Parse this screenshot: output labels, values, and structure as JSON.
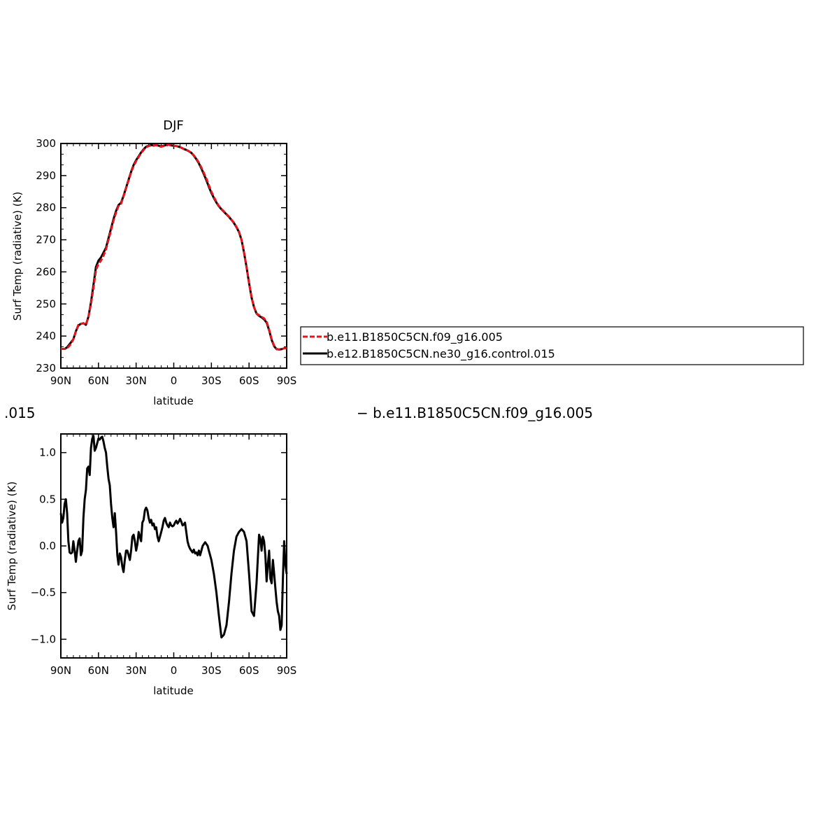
{
  "chart_data": [
    {
      "type": "line",
      "title": "DJF",
      "xlabel": "latitude",
      "ylabel": "Surf Temp (radiative) (K)",
      "xlim": [
        90,
        -90
      ],
      "ylim": [
        230,
        300
      ],
      "x_ticks": [
        90,
        60,
        30,
        0,
        -30,
        -60,
        -90
      ],
      "x_tick_labels": [
        "90N",
        "60N",
        "30N",
        "0",
        "30S",
        "60S",
        "90S"
      ],
      "y_ticks": [
        230,
        240,
        250,
        260,
        270,
        280,
        290,
        300
      ],
      "y_tick_labels": [
        "230",
        "240",
        "250",
        "260",
        "270",
        "280",
        "290",
        "300"
      ],
      "grid": false,
      "legend_position": "right, outside plot",
      "series": [
        {
          "name": "b.e11.B1850C5CN.f09_g16.005",
          "color": "#e8141c",
          "dash": "dashed",
          "x": [
            90,
            87,
            85,
            82,
            80,
            78,
            76,
            74,
            72,
            70,
            68,
            66,
            64,
            62,
            60,
            58,
            56,
            54,
            52,
            50,
            48,
            46,
            44,
            42,
            40,
            38,
            36,
            34,
            32,
            30,
            28,
            26,
            24,
            22,
            20,
            18,
            16,
            14,
            12,
            10,
            8,
            6,
            4,
            2,
            0,
            -2,
            -4,
            -6,
            -8,
            -10,
            -12,
            -14,
            -16,
            -18,
            -20,
            -22,
            -24,
            -26,
            -28,
            -30,
            -32,
            -34,
            -36,
            -38,
            -40,
            -42,
            -44,
            -46,
            -48,
            -50,
            -52,
            -54,
            -56,
            -58,
            -60,
            -62,
            -64,
            -66,
            -68,
            -70,
            -72,
            -74,
            -76,
            -78,
            -80,
            -82,
            -84,
            -86,
            -88,
            -90
          ],
          "values": [
            236.0,
            236.0,
            236.2,
            237.5,
            239.0,
            241.5,
            243.5,
            243.8,
            244.0,
            243.5,
            246.0,
            250.0,
            255.0,
            260.5,
            262.5,
            263.5,
            265.0,
            267.0,
            270.0,
            273.0,
            276.0,
            278.5,
            280.5,
            281.2,
            283.5,
            286.0,
            288.5,
            291.0,
            293.0,
            294.5,
            295.8,
            297.0,
            298.0,
            298.8,
            299.2,
            299.4,
            299.3,
            299.5,
            299.2,
            299.0,
            299.2,
            299.5,
            299.6,
            299.4,
            299.3,
            299.2,
            299.0,
            298.7,
            298.3,
            298.0,
            297.6,
            297.1,
            296.3,
            295.3,
            294.0,
            292.5,
            290.8,
            289.0,
            287.0,
            285.0,
            283.3,
            281.8,
            280.5,
            279.6,
            278.8,
            278.0,
            277.2,
            276.3,
            275.3,
            274.0,
            272.5,
            270.0,
            266.0,
            261.5,
            256.5,
            252.0,
            249.0,
            247.0,
            246.5,
            246.0,
            245.5,
            244.5,
            242.0,
            239.0,
            237.0,
            236.0,
            235.8,
            235.9,
            236.2,
            236.3
          ]
        },
        {
          "name": "b.e12.B1850C5CN.ne30_g16.control.015",
          "color": "#000000",
          "dash": "solid",
          "x": [
            90,
            87,
            85,
            82,
            80,
            78,
            76,
            74,
            72,
            70,
            68,
            66,
            64,
            62,
            60,
            58,
            56,
            54,
            52,
            50,
            48,
            46,
            44,
            42,
            40,
            38,
            36,
            34,
            32,
            30,
            28,
            26,
            24,
            22,
            20,
            18,
            16,
            14,
            12,
            10,
            8,
            6,
            4,
            2,
            0,
            -2,
            -4,
            -6,
            -8,
            -10,
            -12,
            -14,
            -16,
            -18,
            -20,
            -22,
            -24,
            -26,
            -28,
            -30,
            -32,
            -34,
            -36,
            -38,
            -40,
            -42,
            -44,
            -46,
            -48,
            -50,
            -52,
            -54,
            -56,
            -58,
            -60,
            -62,
            -64,
            -66,
            -68,
            -70,
            -72,
            -74,
            -76,
            -78,
            -80,
            -82,
            -84,
            -86,
            -88,
            -90
          ],
          "values": [
            236.0,
            236.0,
            236.5,
            238.0,
            239.0,
            241.5,
            243.3,
            243.8,
            244.0,
            243.5,
            246.0,
            250.5,
            256.0,
            261.5,
            263.5,
            264.5,
            266.0,
            267.5,
            270.5,
            273.5,
            276.5,
            279.0,
            280.8,
            281.5,
            283.7,
            286.2,
            288.7,
            291.2,
            293.3,
            294.8,
            296.0,
            297.2,
            298.2,
            299.0,
            299.3,
            299.5,
            299.4,
            299.5,
            299.3,
            299.1,
            299.3,
            299.5,
            299.6,
            299.4,
            299.3,
            299.2,
            299.0,
            298.7,
            298.3,
            298.0,
            297.6,
            297.1,
            296.2,
            295.1,
            293.8,
            292.2,
            290.4,
            288.5,
            286.5,
            284.6,
            283.0,
            281.6,
            280.4,
            279.5,
            278.7,
            277.9,
            277.1,
            276.2,
            275.2,
            273.9,
            272.4,
            270.0,
            266.0,
            261.5,
            256.5,
            252.0,
            249.0,
            247.0,
            246.3,
            245.8,
            245.2,
            244.2,
            241.8,
            238.8,
            236.8,
            235.9,
            235.8,
            235.9,
            236.2,
            236.3
          ]
        }
      ]
    },
    {
      "type": "line",
      "title": "",
      "xlabel": "latitude",
      "ylabel": "Surf Temp (radiative) (K)",
      "xlim": [
        90,
        -90
      ],
      "ylim": [
        -1.2,
        1.2
      ],
      "x_ticks": [
        90,
        60,
        30,
        0,
        -30,
        -60,
        -90
      ],
      "x_tick_labels": [
        "90N",
        "60N",
        "30N",
        "0",
        "30S",
        "60S",
        "90S"
      ],
      "y_ticks": [
        -1.0,
        -0.5,
        0.0,
        0.5,
        1.0
      ],
      "y_tick_labels": [
        "−1.0",
        "−0.5",
        "0.0",
        "0.5",
        "1.0"
      ],
      "grid": false,
      "series": [
        {
          "color": "#000000",
          "dash": "solid",
          "x": [
            90,
            89,
            88,
            87,
            86,
            85,
            84,
            83,
            82,
            81,
            80,
            79,
            78,
            77,
            76,
            75,
            74,
            73,
            72,
            71,
            70,
            69,
            68,
            67,
            66,
            65,
            64,
            63,
            62,
            61,
            60,
            59,
            58,
            57,
            56,
            55,
            54,
            53,
            52,
            51,
            50,
            49,
            48,
            47,
            46,
            45,
            44,
            43,
            42,
            41,
            40,
            39,
            38,
            37,
            36,
            35,
            34,
            33,
            32,
            31,
            30,
            29,
            28,
            27,
            26,
            25,
            24,
            23,
            22,
            21,
            20,
            19,
            18,
            17,
            16,
            15,
            14,
            13,
            12,
            11,
            10,
            9,
            8,
            7,
            6,
            5,
            4,
            3,
            2,
            1,
            0,
            -1,
            -2,
            -3,
            -4,
            -5,
            -6,
            -7,
            -8,
            -9,
            -10,
            -11,
            -12,
            -13,
            -14,
            -15,
            -16,
            -17,
            -18,
            -19,
            -20,
            -21,
            -22,
            -23,
            -24,
            -25,
            -26,
            -27,
            -28,
            -29,
            -30,
            -32,
            -34,
            -36,
            -38,
            -40,
            -42,
            -44,
            -46,
            -48,
            -50,
            -52,
            -54,
            -56,
            -58,
            -60,
            -62,
            -64,
            -66,
            -68,
            -69,
            -70,
            -71,
            -72,
            -73,
            -74,
            -75,
            -76,
            -77,
            -78,
            -79,
            -80,
            -81,
            -82,
            -83,
            -84,
            -85,
            -86,
            -87,
            -88,
            -89,
            -90
          ],
          "values": [
            0.35,
            0.25,
            0.3,
            0.45,
            0.5,
            0.35,
            0.05,
            -0.07,
            -0.08,
            -0.07,
            0.05,
            -0.05,
            -0.17,
            -0.05,
            0.05,
            0.08,
            -0.1,
            -0.05,
            0.3,
            0.5,
            0.6,
            0.83,
            0.85,
            0.76,
            1.05,
            1.15,
            1.18,
            1.02,
            1.05,
            1.1,
            1.15,
            1.14,
            1.16,
            1.17,
            1.12,
            1.05,
            1.0,
            0.85,
            0.72,
            0.65,
            0.45,
            0.3,
            0.2,
            0.35,
            0.15,
            -0.1,
            -0.2,
            -0.08,
            -0.12,
            -0.22,
            -0.28,
            -0.15,
            -0.05,
            -0.05,
            -0.1,
            -0.15,
            -0.05,
            0.1,
            0.12,
            0.05,
            -0.05,
            0.02,
            0.15,
            0.1,
            0.05,
            0.25,
            0.28,
            0.38,
            0.41,
            0.38,
            0.3,
            0.25,
            0.28,
            0.22,
            0.24,
            0.18,
            0.2,
            0.1,
            0.05,
            0.1,
            0.15,
            0.2,
            0.27,
            0.3,
            0.25,
            0.22,
            0.2,
            0.25,
            0.22,
            0.21,
            0.22,
            0.25,
            0.27,
            0.24,
            0.26,
            0.29,
            0.26,
            0.22,
            0.23,
            0.25,
            0.15,
            0.05,
            0.0,
            -0.03,
            -0.05,
            -0.07,
            -0.04,
            -0.08,
            -0.07,
            -0.1,
            -0.05,
            -0.1,
            -0.05,
            0.0,
            0.02,
            0.04,
            0.02,
            0.0,
            -0.05,
            -0.1,
            -0.15,
            -0.3,
            -0.5,
            -0.75,
            -0.98,
            -0.95,
            -0.85,
            -0.6,
            -0.3,
            -0.05,
            0.1,
            0.15,
            0.18,
            0.15,
            0.05,
            -0.3,
            -0.7,
            -0.75,
            -0.4,
            0.12,
            0.08,
            -0.05,
            0.1,
            0.05,
            -0.1,
            -0.38,
            -0.2,
            -0.05,
            -0.35,
            -0.4,
            -0.15,
            -0.3,
            -0.45,
            -0.6,
            -0.7,
            -0.75,
            -0.9,
            -0.85,
            -0.35,
            0.05,
            -0.2,
            -0.3
          ]
        }
      ]
    }
  ],
  "legend": {
    "entries": [
      {
        "label": "b.e11.B1850C5CN.f09_g16.005",
        "color": "#e8141c",
        "dash": "dashed"
      },
      {
        "label": "b.e12.B1850C5CN.ne30_g16.control.015",
        "color": "#000000",
        "dash": "solid"
      }
    ]
  },
  "bottom_caption": {
    "left_text": ".015",
    "right_text": "− b.e11.B1850C5CN.f09_g16.005"
  }
}
